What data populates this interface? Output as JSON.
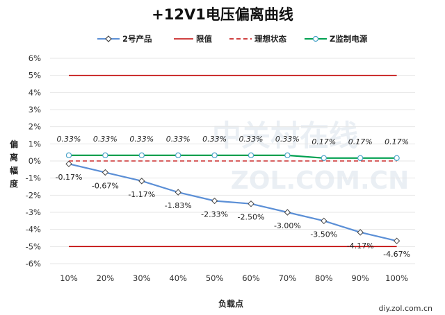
{
  "chart_data": {
    "type": "line",
    "title": "+12V1电压偏离曲线",
    "xlabel": "负载点",
    "ylabel": "偏离幅度",
    "categories": [
      "10%",
      "20%",
      "30%",
      "40%",
      "50%",
      "60%",
      "70%",
      "80%",
      "90%",
      "100%"
    ],
    "ylim": [
      -6,
      6
    ],
    "y_ticks": [
      "6%",
      "5%",
      "4%",
      "3%",
      "2%",
      "1%",
      "0%",
      "-1%",
      "-2%",
      "-3%",
      "-4%",
      "-5%",
      "-6%"
    ],
    "y_tick_values": [
      6,
      5,
      4,
      3,
      2,
      1,
      0,
      -1,
      -2,
      -3,
      -4,
      -5,
      -6
    ],
    "grid": true,
    "legend_position": "top",
    "series": [
      {
        "name": "2号产品",
        "color": "#5b8fd6",
        "marker": "diamond",
        "values": [
          -0.17,
          -0.67,
          -1.17,
          -1.83,
          -2.33,
          -2.5,
          -3.0,
          -3.5,
          -4.17,
          -4.67
        ],
        "labels": [
          "-0.17%",
          "-0.67%",
          "-1.17%",
          "-1.83%",
          "-2.33%",
          "-2.50%",
          "-3.00%",
          "-3.50%",
          "-4.17%",
          "-4.67%"
        ]
      },
      {
        "name": "限值",
        "color": "#c00000",
        "upper": 5,
        "lower": -5
      },
      {
        "name": "理想状态",
        "color": "#c00000",
        "dashed": true,
        "value": 0
      },
      {
        "name": "Z监制电源",
        "color": "#00a050",
        "marker": "circle",
        "values": [
          0.33,
          0.33,
          0.33,
          0.33,
          0.33,
          0.33,
          0.33,
          0.17,
          0.17,
          0.17
        ],
        "labels": [
          "0.33%",
          "0.33%",
          "0.33%",
          "0.33%",
          "0.33%",
          "0.33%",
          "0.33%",
          "0.17%",
          "0.17%",
          "0.17%"
        ]
      }
    ]
  },
  "watermark": {
    "text": "diy.zol.com.cn",
    "logo_text": "中关村在线",
    "logo_sub": "ZOL.COM.CN"
  }
}
